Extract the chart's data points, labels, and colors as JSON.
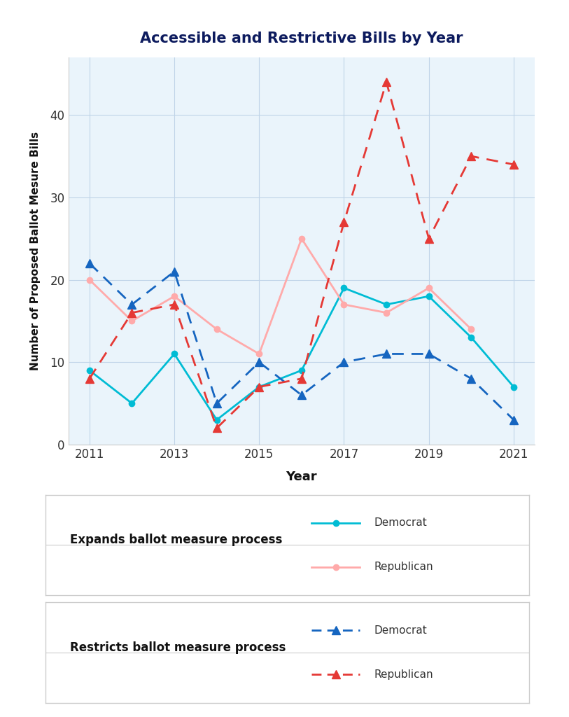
{
  "title": "Accessible and Restrictive Bills by Year",
  "xlabel": "Year",
  "ylabel": "Number of Proposed Ballot Mesure Bills",
  "years": [
    2011,
    2012,
    2013,
    2014,
    2015,
    2016,
    2017,
    2018,
    2019,
    2020,
    2021
  ],
  "expands_democrat": [
    9,
    5,
    11,
    3,
    7,
    9,
    19,
    17,
    18,
    13,
    7
  ],
  "expands_republican": [
    20,
    15,
    18,
    14,
    11,
    25,
    17,
    16,
    19,
    14,
    null
  ],
  "restricts_democrat": [
    22,
    17,
    21,
    5,
    10,
    6,
    10,
    11,
    11,
    8,
    3
  ],
  "restricts_republican": [
    8,
    16,
    17,
    2,
    7,
    8,
    27,
    44,
    25,
    35,
    34
  ],
  "expands_dem_color": "#00BCD4",
  "expands_rep_color": "#FFAAAA",
  "restricts_dem_color": "#1565C0",
  "restricts_rep_color": "#E53935",
  "plot_bg_color": "#EAF4FB",
  "fig_bg_color": "#FFFFFF",
  "ylim": [
    0,
    47
  ],
  "yticks": [
    0,
    10,
    20,
    30,
    40
  ],
  "legend1_label": "Expands ballot measure process",
  "legend2_label": "Restricts ballot measure process",
  "legend_dem_label": "Democrat",
  "legend_rep_label": "Republican"
}
